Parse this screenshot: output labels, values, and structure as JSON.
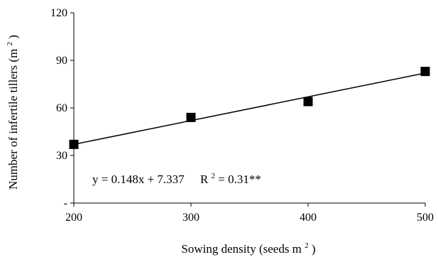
{
  "chart_data": {
    "type": "scatter",
    "xlabel": "Sowing density (seeds m2)",
    "xlabel_main": "Sowing density (seeds m",
    "xlabel_sup": "2",
    "xlabel_end": ")",
    "ylabel_main": "Number of infertile tillers (m",
    "ylabel_sup": "2",
    "ylabel_end": ")",
    "x_ticks": [
      200,
      300,
      400,
      500
    ],
    "x_tick_labels": [
      "200",
      "300",
      "400",
      "500"
    ],
    "y_ticks": [
      0,
      30,
      60,
      90,
      120
    ],
    "y_tick_labels": [
      "-",
      "30",
      "60",
      "90",
      "120"
    ],
    "xlim": [
      200,
      500
    ],
    "ylim": [
      0,
      120
    ],
    "grid": false,
    "points": [
      {
        "x": 200,
        "y": 37
      },
      {
        "x": 300,
        "y": 54
      },
      {
        "x": 400,
        "y": 64
      },
      {
        "x": 500,
        "y": 83
      }
    ],
    "trendline": {
      "x_start": 200,
      "y_start": 37,
      "x_end": 500,
      "y_end": 82
    },
    "equation": "y = 0.148x + 7.337",
    "r2_prefix": "R",
    "r2_sup": "2",
    "r2_suffix": " = 0.31**"
  }
}
